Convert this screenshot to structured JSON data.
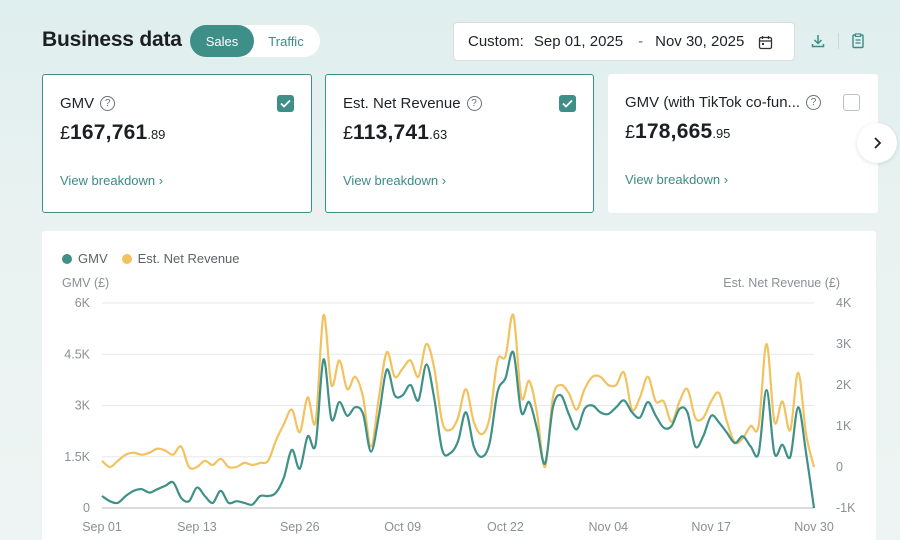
{
  "header": {
    "title": "Business data",
    "tabs": [
      {
        "label": "Sales",
        "active": true
      },
      {
        "label": "Traffic",
        "active": false
      }
    ],
    "date_range": {
      "label": "Custom:",
      "start": "Sep 01, 2025",
      "end": "Nov 30, 2025",
      "separator": "-"
    },
    "icons": [
      "calendar-icon",
      "download-icon",
      "report-icon"
    ]
  },
  "cards": [
    {
      "title": "GMV",
      "currency": "£",
      "integer": "167,761",
      "decimal": ".89",
      "checked": true,
      "link": "View breakdown ›"
    },
    {
      "title": "Est. Net Revenue",
      "currency": "£",
      "integer": "113,741",
      "decimal": ".63",
      "checked": true,
      "link": "View breakdown ›"
    },
    {
      "title": "GMV (with TikTok co-fun...",
      "currency": "£",
      "integer": "178,665",
      "decimal": ".95",
      "checked": false,
      "link": "View breakdown ›"
    }
  ],
  "colors": {
    "accent": "#3e8f88",
    "gmv": "#3e9088",
    "net_revenue": "#f2c25e"
  },
  "chart_data": {
    "type": "line",
    "legend": [
      "GMV",
      "Est. Net Revenue"
    ],
    "legend_position": "top-left",
    "left_axis_title": "GMV (£)",
    "right_axis_title": "Est. Net Revenue (£)",
    "left_ticks": [
      "0",
      "1.5K",
      "3K",
      "4.5K",
      "6K"
    ],
    "right_ticks": [
      "-1K",
      "0",
      "1K",
      "2K",
      "3K",
      "4K"
    ],
    "ylim_left": [
      0,
      6000
    ],
    "ylim_right": [
      -1000,
      4000
    ],
    "x_ticks": [
      "Sep 01",
      "Sep 13",
      "Sep 26",
      "Oct 09",
      "Oct 22",
      "Nov 04",
      "Nov 17",
      "Nov 30"
    ],
    "x_tick_days": [
      0,
      12,
      25,
      38,
      51,
      64,
      77,
      90
    ],
    "grid": true,
    "series": [
      {
        "name": "GMV",
        "axis": "left",
        "color": "#3e9088",
        "values": [
          350,
          200,
          150,
          350,
          500,
          550,
          450,
          550,
          650,
          750,
          300,
          200,
          600,
          350,
          150,
          500,
          150,
          200,
          150,
          100,
          350,
          350,
          450,
          900,
          1700,
          1150,
          2100,
          1850,
          4350,
          2600,
          3100,
          2700,
          2950,
          2750,
          1650,
          2700,
          4050,
          3300,
          3300,
          3600,
          3150,
          4200,
          3200,
          1700,
          1600,
          1950,
          2800,
          1800,
          1500,
          1900,
          3400,
          3800,
          4550,
          2800,
          3100,
          2300,
          1300,
          2950,
          3300,
          2750,
          2300,
          2900,
          3000,
          2800,
          2750,
          2950,
          3150,
          2800,
          2650,
          3100,
          2700,
          2350,
          2400,
          2900,
          2800,
          1800,
          2100,
          2700,
          2500,
          2200,
          1900,
          2100,
          1800,
          1600,
          3450,
          1600,
          1850,
          1500,
          2950,
          1600,
          0
        ]
      },
      {
        "name": "Est. Net Revenue",
        "axis": "right",
        "color": "#f2c25e",
        "values": [
          150,
          0,
          150,
          300,
          350,
          300,
          350,
          450,
          400,
          300,
          500,
          0,
          0,
          150,
          50,
          200,
          0,
          0,
          100,
          50,
          100,
          150,
          650,
          1050,
          1400,
          850,
          1700,
          1100,
          3700,
          2000,
          2600,
          1900,
          2200,
          1700,
          500,
          1700,
          2800,
          2200,
          2400,
          2600,
          2200,
          3000,
          2400,
          1100,
          900,
          1200,
          1900,
          1100,
          800,
          1200,
          2600,
          2700,
          3700,
          1700,
          2100,
          1300,
          0,
          1700,
          2000,
          1800,
          1400,
          1900,
          2200,
          2200,
          2000,
          2000,
          2300,
          1400,
          1700,
          2200,
          1600,
          1600,
          1100,
          1600,
          1900,
          1200,
          1200,
          1600,
          1800,
          1100,
          600,
          700,
          1000,
          1000,
          3000,
          1100,
          1600,
          900,
          2300,
          800,
          0
        ]
      }
    ]
  }
}
